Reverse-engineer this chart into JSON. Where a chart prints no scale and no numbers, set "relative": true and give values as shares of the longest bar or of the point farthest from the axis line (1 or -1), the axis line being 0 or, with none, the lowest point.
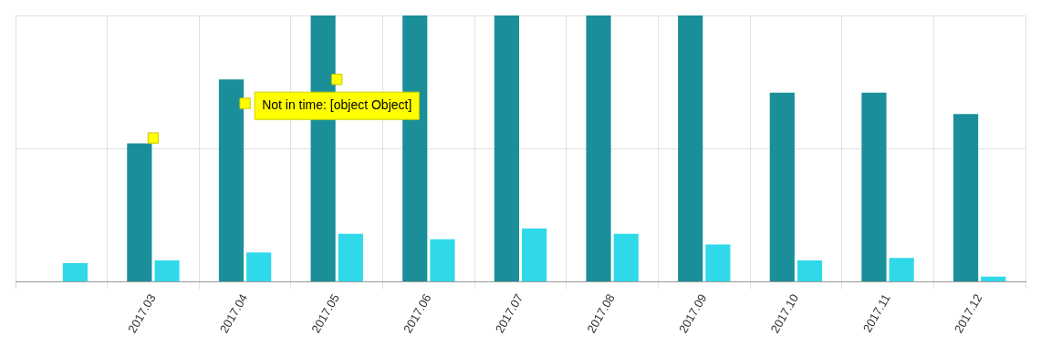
{
  "chart_data": {
    "type": "bar",
    "relative": true,
    "categories": [
      null,
      "2017.03",
      "2017.04",
      "2017.05",
      "2017.06",
      "2017.07",
      "2017.08",
      "2017.09",
      "2017.10",
      "2017.11",
      "2017.12"
    ],
    "series": [
      {
        "color": "#1a8f99",
        "values": [
          null,
          0.52,
          0.76,
          1,
          1,
          1,
          1,
          1,
          0.71,
          0.71,
          0.63
        ]
      },
      {
        "color": "#2fd9ea",
        "values": [
          0.07,
          0.08,
          0.11,
          0.18,
          0.16,
          0.2,
          0.18,
          0.14,
          0.08,
          0.09,
          0.02
        ]
      },
      {
        "type": "scatter",
        "color": "#ffff00",
        "marker": "square",
        "values": [
          null,
          0.54,
          0.67,
          0.76,
          null,
          null,
          null,
          null,
          null,
          null,
          null
        ]
      }
    ],
    "annotations": [
      {
        "text": "Not in time: [object Object]",
        "x": "2017.05",
        "y": 0.76
      }
    ],
    "grid": true,
    "tick_labels": "x",
    "legend": false
  }
}
